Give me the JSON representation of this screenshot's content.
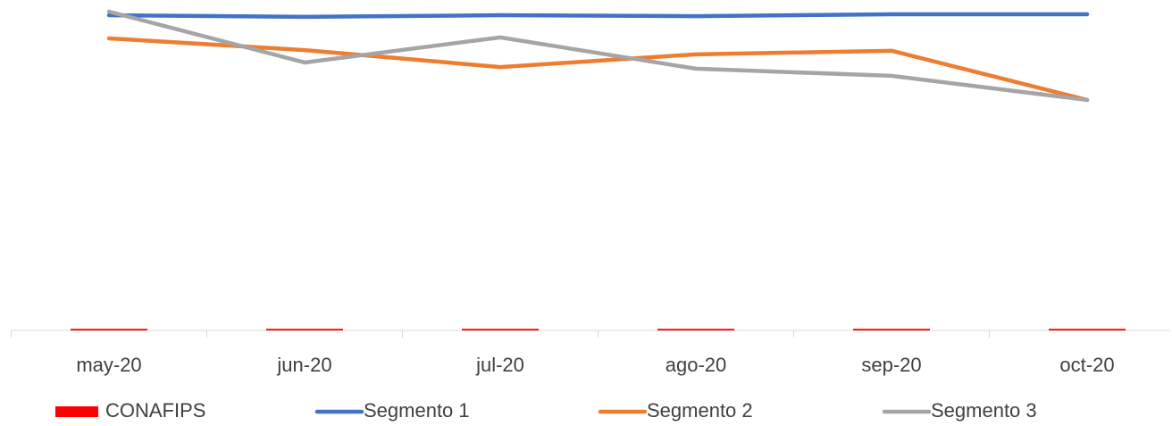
{
  "chart_data": {
    "type": "line",
    "categories": [
      "may-20",
      "jun-20",
      "jul-20",
      "ago-20",
      "sep-20",
      "oct-20"
    ],
    "series": [
      {
        "name": "CONAFIPS",
        "type": "bar",
        "color": "#ff0000",
        "values": [
          0.5,
          0.5,
          0.5,
          0.5,
          0.5,
          0.5
        ]
      },
      {
        "name": "Segmento 1",
        "color": "#4472c4",
        "values": [
          96.7,
          96.2,
          96.7,
          96.4,
          97.0,
          97.0
        ]
      },
      {
        "name": "Segmento 2",
        "color": "#ed7d31",
        "values": [
          89.6,
          86.0,
          80.8,
          84.7,
          85.8,
          70.7
        ]
      },
      {
        "name": "Segmento 3",
        "color": "#a5a5a5",
        "values": [
          97.8,
          82.2,
          89.9,
          80.3,
          78.1,
          70.7
        ]
      }
    ],
    "ylim": [
      0,
      100
    ],
    "legend": "bottom"
  }
}
